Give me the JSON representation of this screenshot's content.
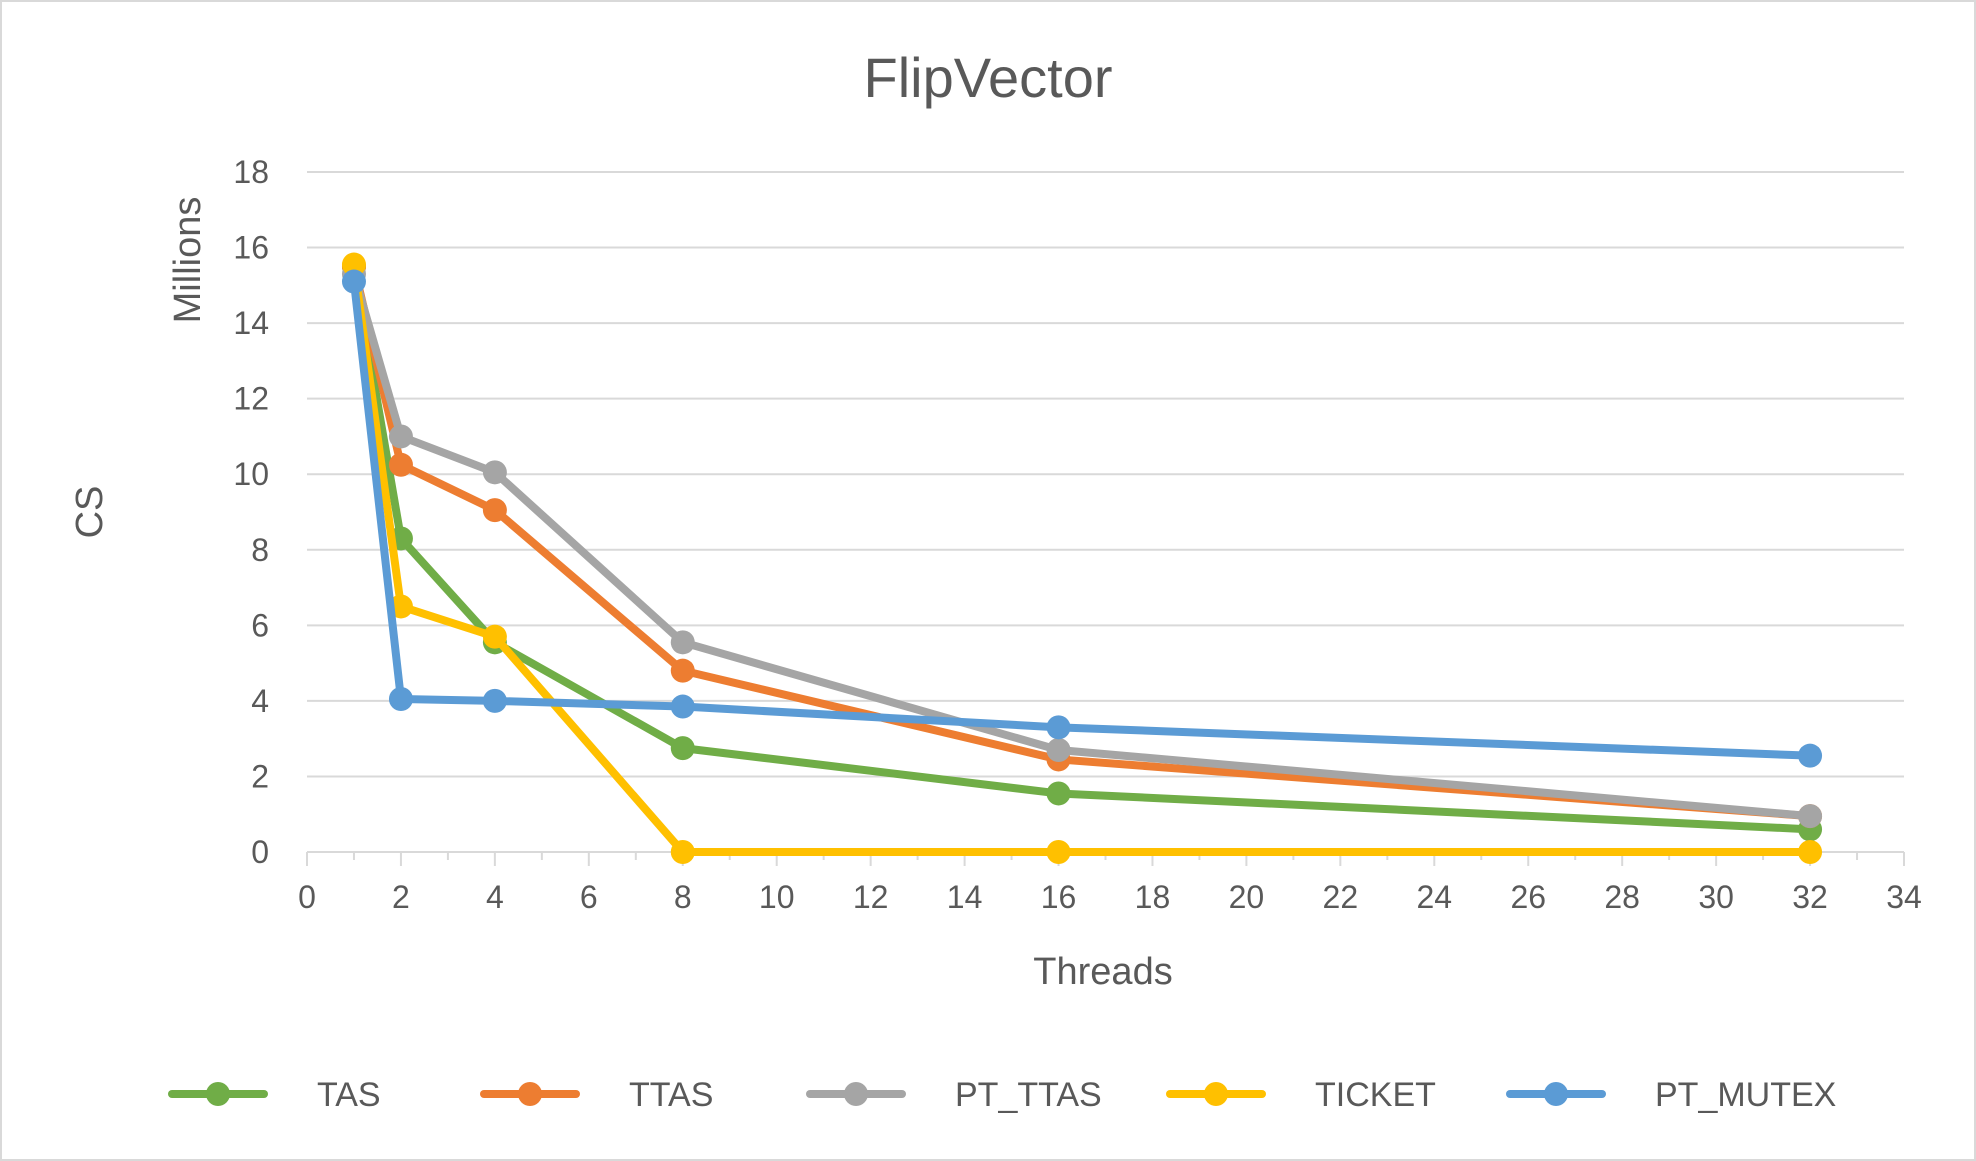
{
  "chart_data": {
    "type": "line",
    "title": "FlipVector",
    "xlabel": "Threads",
    "ylabel": "CS",
    "yunit_label": "Millions",
    "xlim": [
      0,
      34
    ],
    "ylim": [
      0,
      18
    ],
    "xticks": [
      0,
      2,
      4,
      6,
      8,
      10,
      12,
      14,
      16,
      18,
      20,
      22,
      24,
      26,
      28,
      30,
      32,
      34
    ],
    "yticks": [
      0,
      2,
      4,
      6,
      8,
      10,
      12,
      14,
      16,
      18
    ],
    "grid": true,
    "legend_position": "bottom",
    "x": [
      1,
      2,
      4,
      8,
      16,
      32
    ],
    "series": [
      {
        "name": "TAS",
        "color": "#70ad47",
        "values": [
          15.5,
          8.3,
          5.55,
          2.75,
          1.55,
          0.6
        ]
      },
      {
        "name": "TTAS",
        "color": "#ed7d31",
        "values": [
          15.5,
          10.25,
          9.05,
          4.8,
          2.45,
          0.95
        ]
      },
      {
        "name": "PT_TTAS",
        "color": "#a5a5a5",
        "values": [
          15.3,
          11.0,
          10.05,
          5.55,
          2.7,
          0.95
        ]
      },
      {
        "name": "TICKET",
        "color": "#ffc000",
        "values": [
          15.55,
          6.5,
          5.7,
          0.0,
          0.0,
          0.0
        ]
      },
      {
        "name": "PT_MUTEX",
        "color": "#5b9bd5",
        "values": [
          15.1,
          4.05,
          4.0,
          3.85,
          3.3,
          2.55
        ]
      }
    ]
  }
}
